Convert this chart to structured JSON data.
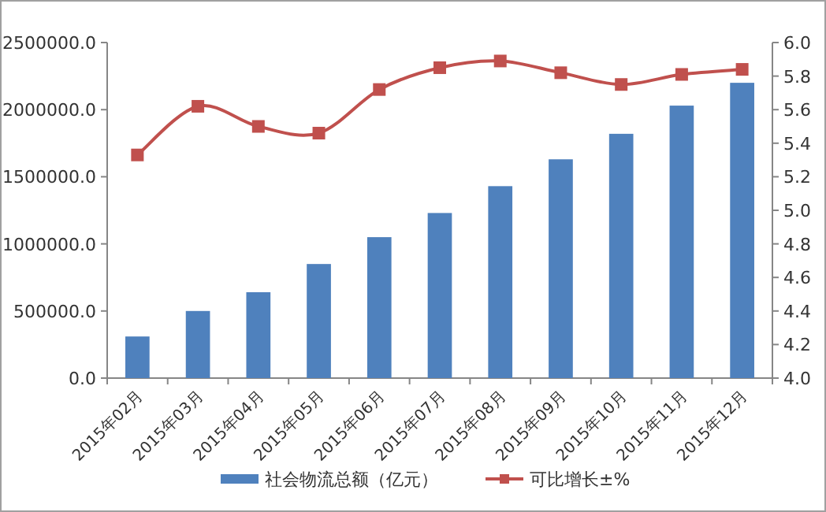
{
  "chart_data": {
    "type": "bar",
    "categories": [
      "2015年02月",
      "2015年03月",
      "2015年04月",
      "2015年05月",
      "2015年06月",
      "2015年07月",
      "2015年08月",
      "2015年09月",
      "2015年10月",
      "2015年11月",
      "2015年12月"
    ],
    "series": [
      {
        "name": "社会物流总额（亿元）",
        "color": "#4f81bd",
        "values": [
          310000,
          500000,
          640000,
          850000,
          1050000,
          1230000,
          1430000,
          1630000,
          1820000,
          2030000,
          2200000
        ]
      },
      {
        "name": "可比增长±%",
        "type": "line",
        "axis": "y2",
        "color": "#c0504d",
        "marker": "square",
        "values": [
          5.33,
          5.62,
          5.5,
          5.46,
          5.72,
          5.85,
          5.89,
          5.82,
          5.75,
          5.81,
          5.84
        ]
      }
    ],
    "ylim": [
      0,
      2500000
    ],
    "yticks": [
      {
        "value": 0,
        "label": "0.0"
      },
      {
        "value": 500000,
        "label": "500000.0"
      },
      {
        "value": 1000000,
        "label": "1000000.0"
      },
      {
        "value": 1500000,
        "label": "1500000.0"
      },
      {
        "value": 2000000,
        "label": "2000000.0"
      },
      {
        "value": 2500000,
        "label": "2500000.0"
      }
    ],
    "y2lim": [
      4,
      6
    ],
    "y2ticks": [
      {
        "value": 4,
        "label": "4.0"
      },
      {
        "value": 4.2,
        "label": "4.2"
      },
      {
        "value": 4.4,
        "label": "4.4"
      },
      {
        "value": 4.6,
        "label": "4.6"
      },
      {
        "value": 4.8,
        "label": "4.8"
      },
      {
        "value": 5,
        "label": "5.0"
      },
      {
        "value": 5.2,
        "label": "5.2"
      },
      {
        "value": 5.4,
        "label": "5.4"
      },
      {
        "value": 5.6,
        "label": "5.6"
      },
      {
        "value": 5.8,
        "label": "5.8"
      },
      {
        "value": 6,
        "label": "6.0"
      }
    ],
    "grid": false,
    "legend": "bottom"
  }
}
